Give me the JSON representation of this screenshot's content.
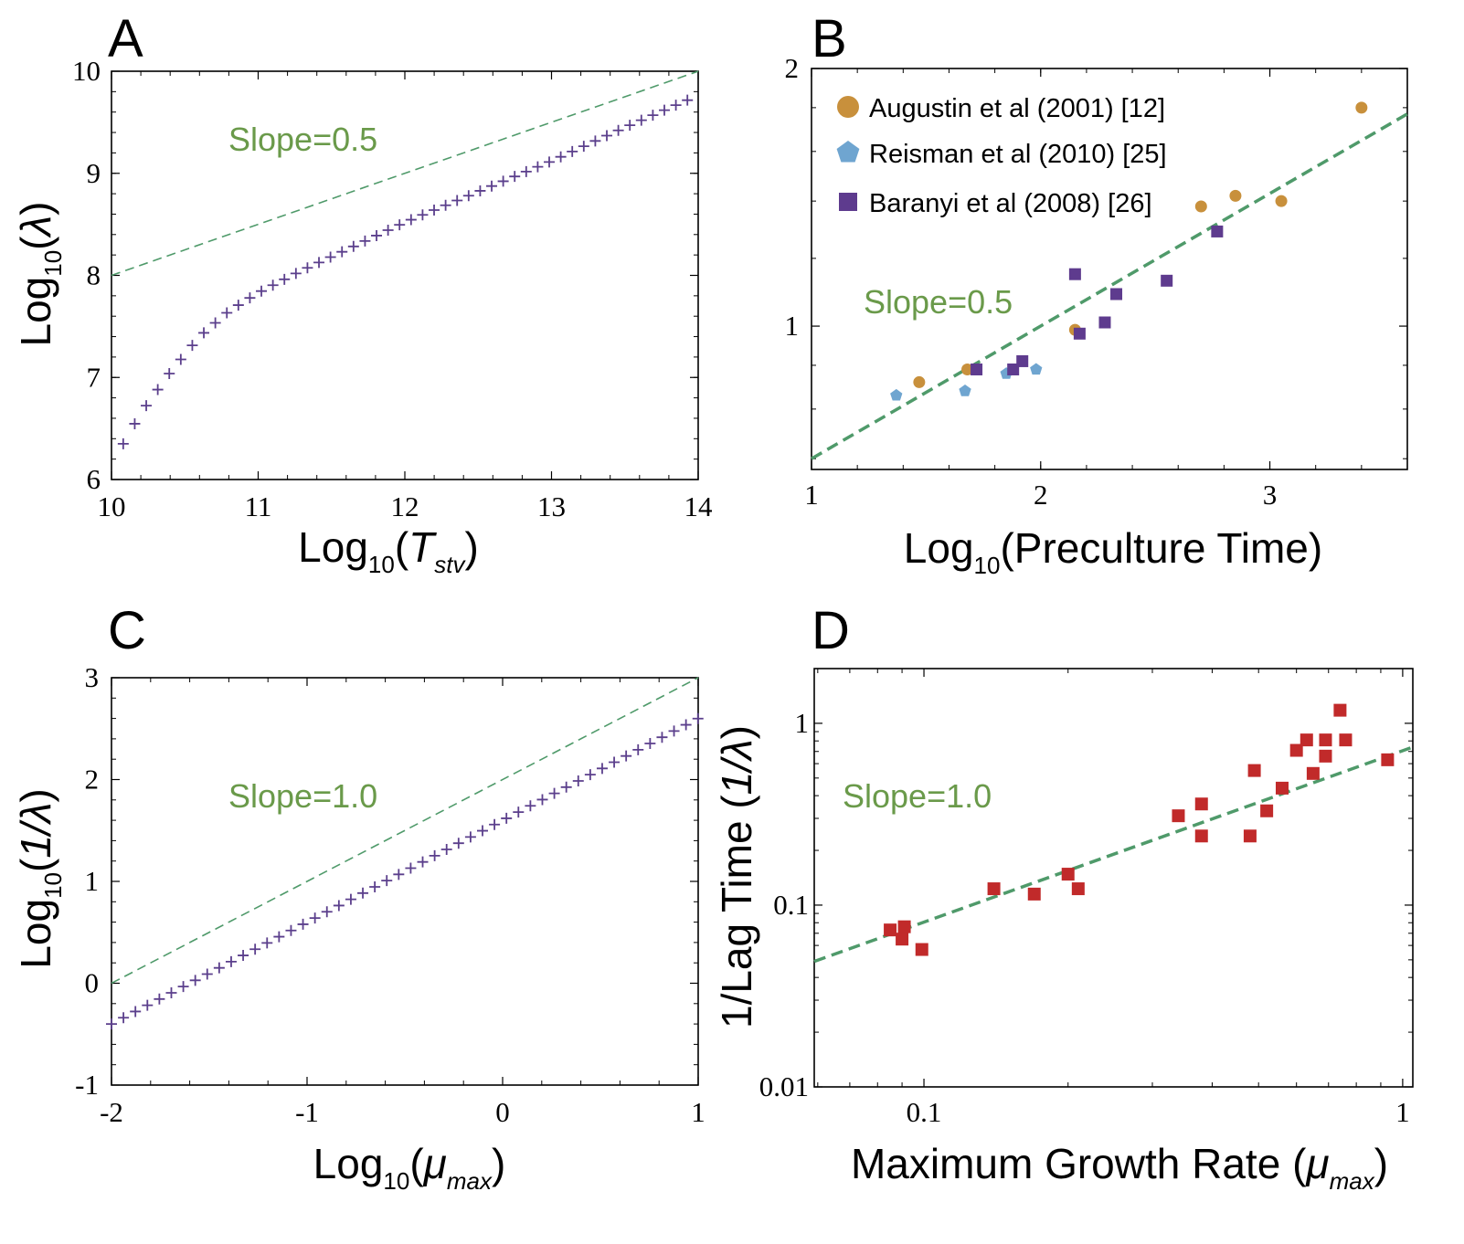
{
  "colors": {
    "theory_marker": "#5b3f8c",
    "fit_line": "#4f9a6a",
    "slope_text": "#6a9a4a",
    "augustin": "#c8903c",
    "reisman": "#6fa5d0",
    "baranyi": "#5e3b8e",
    "red_marker": "#c12a2a"
  },
  "chart_data": [
    {
      "panel": "A",
      "type": "scatter",
      "title": "",
      "xlabel": {
        "pre": "Log",
        "sub": "10",
        "open": "(",
        "var": "T",
        "var_sub": "stv",
        "close": ")"
      },
      "ylabel": {
        "pre": "Log",
        "sub": "10",
        "open": "(",
        "var": "λ",
        "close": ")"
      },
      "xlim": [
        10,
        14
      ],
      "ylim": [
        6,
        10
      ],
      "xticks": [
        "10",
        "11",
        "12",
        "13",
        "14"
      ],
      "yticks": [
        "6",
        "7",
        "8",
        "9",
        "10"
      ],
      "annotation": "Slope=0.5",
      "reference_line": {
        "slope": 0.5,
        "intercept": 3.0,
        "style": "dashed"
      },
      "series": [
        {
          "name": "model",
          "marker": "plus",
          "x_start": 10.08,
          "x_end": 13.98,
          "x_step": 0.0785,
          "curve_points": [
            [
              10.08,
              6.35
            ],
            [
              10.2,
              6.65
            ],
            [
              10.4,
              7.05
            ],
            [
              10.6,
              7.4
            ],
            [
              10.8,
              7.65
            ],
            [
              11.0,
              7.83
            ],
            [
              11.3,
              8.05
            ],
            [
              11.6,
              8.25
            ],
            [
              12.0,
              8.52
            ],
            [
              12.5,
              8.82
            ],
            [
              13.0,
              9.12
            ],
            [
              13.5,
              9.45
            ],
            [
              13.98,
              9.75
            ]
          ]
        }
      ]
    },
    {
      "panel": "B",
      "type": "scatter",
      "title": "",
      "xlabel": {
        "pre": "Log",
        "sub": "10",
        "rest": "(Preculture Time)"
      },
      "ylabel": null,
      "xlim": [
        1,
        3.6
      ],
      "ylim_log": [
        0.68,
        2
      ],
      "xticks": [
        "1",
        "2",
        "3"
      ],
      "yticks": [
        "1",
        "2"
      ],
      "annotation": "Slope=0.5",
      "reference_line": {
        "slope": 0.5,
        "points": [
          [
            1.0,
            0.7
          ],
          [
            3.6,
            1.77
          ]
        ],
        "style": "dashed"
      },
      "legend": [
        {
          "label": "Augustin et al (2001) [12]",
          "marker": "circle"
        },
        {
          "label": "Reisman et al (2010) [25]",
          "marker": "pentagon"
        },
        {
          "label": "Baranyi et al (2008) [26]",
          "marker": "square"
        }
      ],
      "series": [
        {
          "name": "Augustin et al (2001) [12]",
          "marker": "circle",
          "points": [
            [
              1.47,
              0.86
            ],
            [
              1.68,
              0.89
            ],
            [
              2.15,
              0.99
            ],
            [
              2.7,
              1.38
            ],
            [
              2.85,
              1.42
            ],
            [
              3.05,
              1.4
            ],
            [
              3.4,
              1.8
            ]
          ]
        },
        {
          "name": "Reisman et al (2010) [25]",
          "marker": "pentagon",
          "points": [
            [
              1.37,
              0.83
            ],
            [
              1.67,
              0.84
            ],
            [
              1.85,
              0.88
            ],
            [
              1.98,
              0.89
            ]
          ]
        },
        {
          "name": "Baranyi et al (2008) [26]",
          "marker": "square",
          "points": [
            [
              1.72,
              0.89
            ],
            [
              1.88,
              0.89
            ],
            [
              1.92,
              0.91
            ],
            [
              2.15,
              1.15
            ],
            [
              2.17,
              0.98
            ],
            [
              2.28,
              1.01
            ],
            [
              2.33,
              1.09
            ],
            [
              2.55,
              1.13
            ],
            [
              2.77,
              1.29
            ]
          ]
        }
      ]
    },
    {
      "panel": "C",
      "type": "scatter",
      "title": "",
      "xlabel": {
        "pre": "Log",
        "sub": "10",
        "open": "(",
        "var": "μ",
        "var_sub": "max",
        "close": ")"
      },
      "ylabel": {
        "pre": "Log",
        "sub": "10",
        "open": "(",
        "var": "1/λ",
        "close": ")"
      },
      "xlim": [
        -2,
        1
      ],
      "ylim": [
        -1,
        3
      ],
      "xticks": [
        "-2",
        "-1",
        "0",
        "1"
      ],
      "yticks": [
        "-1",
        "0",
        "1",
        "2",
        "3"
      ],
      "annotation": "Slope=1.0",
      "reference_line": {
        "slope": 1.0,
        "intercept": 2.0,
        "style": "dashed"
      },
      "series": [
        {
          "name": "model",
          "marker": "plus",
          "x_start": -2.0,
          "x_end": 1.0,
          "x_step": 0.0612,
          "line": {
            "slope": 1.0,
            "intercept": 1.6
          }
        }
      ]
    },
    {
      "panel": "D",
      "type": "scatter",
      "title": "",
      "xlabel": {
        "pre": "Maximum Growth Rate (",
        "var": "μ",
        "var_sub": "max",
        "close": ")"
      },
      "ylabel": {
        "pre": "1/Lag Time (",
        "var": "1/λ",
        "close": ")"
      },
      "xlim_log": [
        0.059,
        1.05
      ],
      "ylim_log": [
        0.01,
        2
      ],
      "xticks": [
        "0.1",
        "1"
      ],
      "yticks": [
        "0.01",
        "0.1",
        "1"
      ],
      "annotation": "Slope=1.0",
      "reference_line": {
        "slope": 1.0,
        "points": [
          [
            0.059,
            0.049
          ],
          [
            1.05,
            0.74
          ]
        ],
        "style": "dashed"
      },
      "series": [
        {
          "name": "data",
          "marker": "square",
          "points": [
            [
              0.085,
              0.073
            ],
            [
              0.09,
              0.065
            ],
            [
              0.091,
              0.076
            ],
            [
              0.099,
              0.057
            ],
            [
              0.14,
              0.123
            ],
            [
              0.17,
              0.115
            ],
            [
              0.2,
              0.148
            ],
            [
              0.21,
              0.123
            ],
            [
              0.34,
              0.31
            ],
            [
              0.38,
              0.36
            ],
            [
              0.38,
              0.24
            ],
            [
              0.48,
              0.24
            ],
            [
              0.49,
              0.55
            ],
            [
              0.52,
              0.33
            ],
            [
              0.56,
              0.44
            ],
            [
              0.6,
              0.71
            ],
            [
              0.63,
              0.81
            ],
            [
              0.65,
              0.53
            ],
            [
              0.69,
              0.81
            ],
            [
              0.69,
              0.66
            ],
            [
              0.74,
              1.18
            ],
            [
              0.76,
              0.81
            ],
            [
              0.93,
              0.63
            ]
          ]
        }
      ]
    }
  ]
}
